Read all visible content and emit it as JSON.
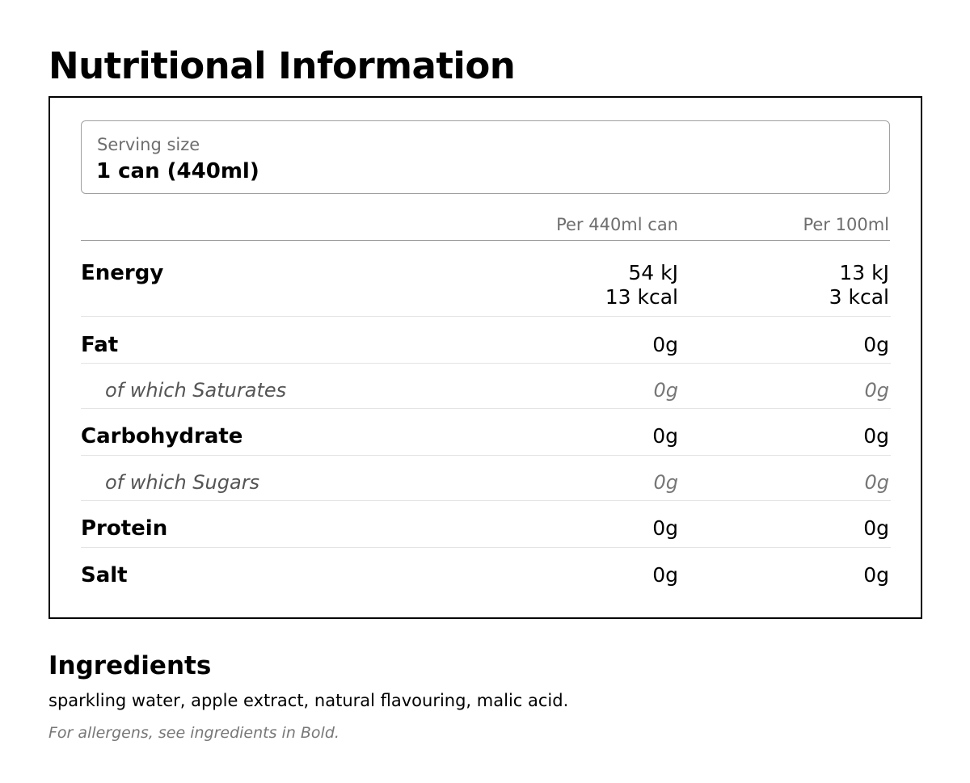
{
  "title": "Nutritional Information",
  "serving": {
    "label": "Serving size",
    "value": "1 can (440ml)"
  },
  "table": {
    "columns": [
      "Per 440ml can",
      "Per 100ml"
    ],
    "rows": [
      {
        "label": "Energy",
        "per_can": [
          "54 kJ",
          "13 kcal"
        ],
        "per_100ml": [
          "13 kJ",
          "3 kcal"
        ],
        "sub": false
      },
      {
        "label": "Fat",
        "per_can": [
          "0g"
        ],
        "per_100ml": [
          "0g"
        ],
        "sub": false
      },
      {
        "label": "of which Saturates",
        "per_can": [
          "0g"
        ],
        "per_100ml": [
          "0g"
        ],
        "sub": true
      },
      {
        "label": "Carbohydrate",
        "per_can": [
          "0g"
        ],
        "per_100ml": [
          "0g"
        ],
        "sub": false
      },
      {
        "label": "of which Sugars",
        "per_can": [
          "0g"
        ],
        "per_100ml": [
          "0g"
        ],
        "sub": true
      },
      {
        "label": "Protein",
        "per_can": [
          "0g"
        ],
        "per_100ml": [
          "0g"
        ],
        "sub": false
      },
      {
        "label": "Salt",
        "per_can": [
          "0g"
        ],
        "per_100ml": [
          "0g"
        ],
        "sub": false
      }
    ]
  },
  "ingredients": {
    "title": "Ingredients",
    "text": "sparkling water, apple extract, natural flavouring, malic acid.",
    "note": "For allergens, see ingredients in Bold."
  }
}
